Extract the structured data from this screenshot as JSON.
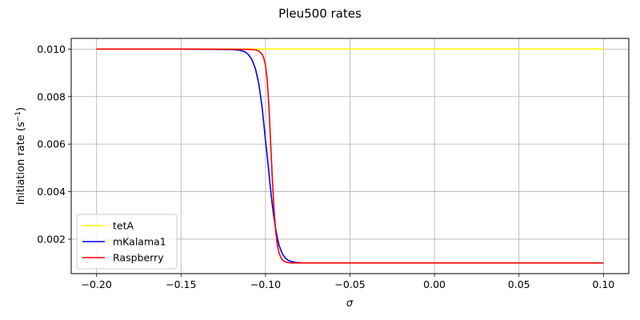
{
  "chart_data": {
    "type": "line",
    "title": "Pleu500 rates",
    "xlabel": "σ",
    "ylabel_main": "Initiation rate (s",
    "ylabel_sup": "−1",
    "ylabel_end": ")",
    "xlim": [
      -0.215,
      0.115
    ],
    "ylim": [
      0.00055,
      0.01045
    ],
    "grid": true,
    "legend_position": "lower-left",
    "xticks": [
      -0.2,
      -0.15,
      -0.1,
      -0.05,
      0.0,
      0.05,
      0.1
    ],
    "xtick_labels": [
      "−0.20",
      "−0.15",
      "−0.10",
      "−0.05",
      "0.00",
      "0.05",
      "0.10"
    ],
    "yticks": [
      0.002,
      0.004,
      0.006,
      0.008,
      0.01
    ],
    "ytick_labels": [
      "0.002",
      "0.004",
      "0.006",
      "0.008",
      "0.010"
    ],
    "series": [
      {
        "name": "tetA",
        "color": "#ffff00",
        "x": [
          -0.2,
          0.1
        ],
        "y": [
          0.01,
          0.01
        ]
      },
      {
        "name": "mKalama1",
        "color": "#0000ff",
        "x": [
          -0.2,
          -0.15,
          -0.12,
          -0.115,
          -0.112,
          -0.11,
          -0.108,
          -0.106,
          -0.104,
          -0.102,
          -0.1,
          -0.099,
          -0.098,
          -0.097,
          -0.096,
          -0.095,
          -0.094,
          -0.093,
          -0.092,
          -0.091,
          -0.09,
          -0.089,
          -0.088,
          -0.087,
          -0.086,
          -0.084,
          -0.082,
          -0.08,
          -0.078,
          -0.075,
          -0.07,
          -0.06,
          0.0,
          0.1
        ],
        "y": [
          0.01,
          0.01,
          0.00998,
          0.00995,
          0.00988,
          0.00976,
          0.00955,
          0.00918,
          0.00855,
          0.00755,
          0.00615,
          0.0055,
          0.0048,
          0.0041,
          0.00345,
          0.0029,
          0.00245,
          0.00205,
          0.00175,
          0.00155,
          0.00138,
          0.00127,
          0.00119,
          0.00113,
          0.00109,
          0.00105,
          0.00102,
          0.00101,
          0.001,
          0.001,
          0.001,
          0.001,
          0.001,
          0.001
        ]
      },
      {
        "name": "Raspberry",
        "color": "#ff0000",
        "x": [
          -0.2,
          -0.15,
          -0.11,
          -0.106,
          -0.104,
          -0.102,
          -0.101,
          -0.1,
          -0.099,
          -0.098,
          -0.097,
          -0.096,
          -0.095,
          -0.094,
          -0.093,
          -0.092,
          -0.091,
          -0.09,
          -0.089,
          -0.088,
          -0.087,
          -0.086,
          -0.085,
          -0.083,
          -0.08,
          -0.075,
          -0.07,
          0.0,
          0.1
        ],
        "y": [
          0.01,
          0.01,
          0.00999,
          0.00997,
          0.00992,
          0.00978,
          0.00962,
          0.00932,
          0.0087,
          0.0076,
          0.0061,
          0.0046,
          0.0033,
          0.00235,
          0.00175,
          0.00142,
          0.00124,
          0.00113,
          0.00107,
          0.00104,
          0.00102,
          0.00101,
          0.001,
          0.001,
          0.001,
          0.001,
          0.001,
          0.001,
          0.001
        ]
      }
    ]
  }
}
